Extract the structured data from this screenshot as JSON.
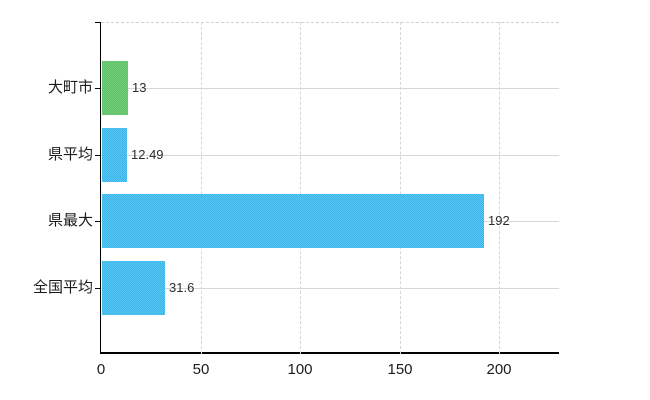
{
  "chart_data": {
    "type": "bar",
    "orientation": "horizontal",
    "title": "",
    "xlabel": "",
    "ylabel": "",
    "categories": [
      "大町市",
      "県平均",
      "県最大",
      "全国平均"
    ],
    "values": [
      13,
      12.49,
      192,
      31.6
    ],
    "value_labels": [
      "13",
      "12.49",
      "192",
      "31.6"
    ],
    "series": [
      {
        "name": "value",
        "values": [
          13,
          12.49,
          192,
          31.6
        ]
      }
    ],
    "bar_colors": [
      "#5ec768",
      "#3bbdf3",
      "#3bbdf3",
      "#3bbdf3"
    ],
    "x_ticks": [
      "0",
      "50",
      "100",
      "150",
      "200"
    ],
    "x_tick_values": [
      0,
      50,
      100,
      150,
      200
    ],
    "xlim": [
      0,
      230
    ],
    "grid": true,
    "legend": false,
    "plot_background": "#ffffff",
    "gridline_color_horizontal": "#d5d9d1",
    "gridline_color_vertical": "#ddd2d2",
    "axis_color": "#000000",
    "text_color": "#1b1b1b"
  }
}
